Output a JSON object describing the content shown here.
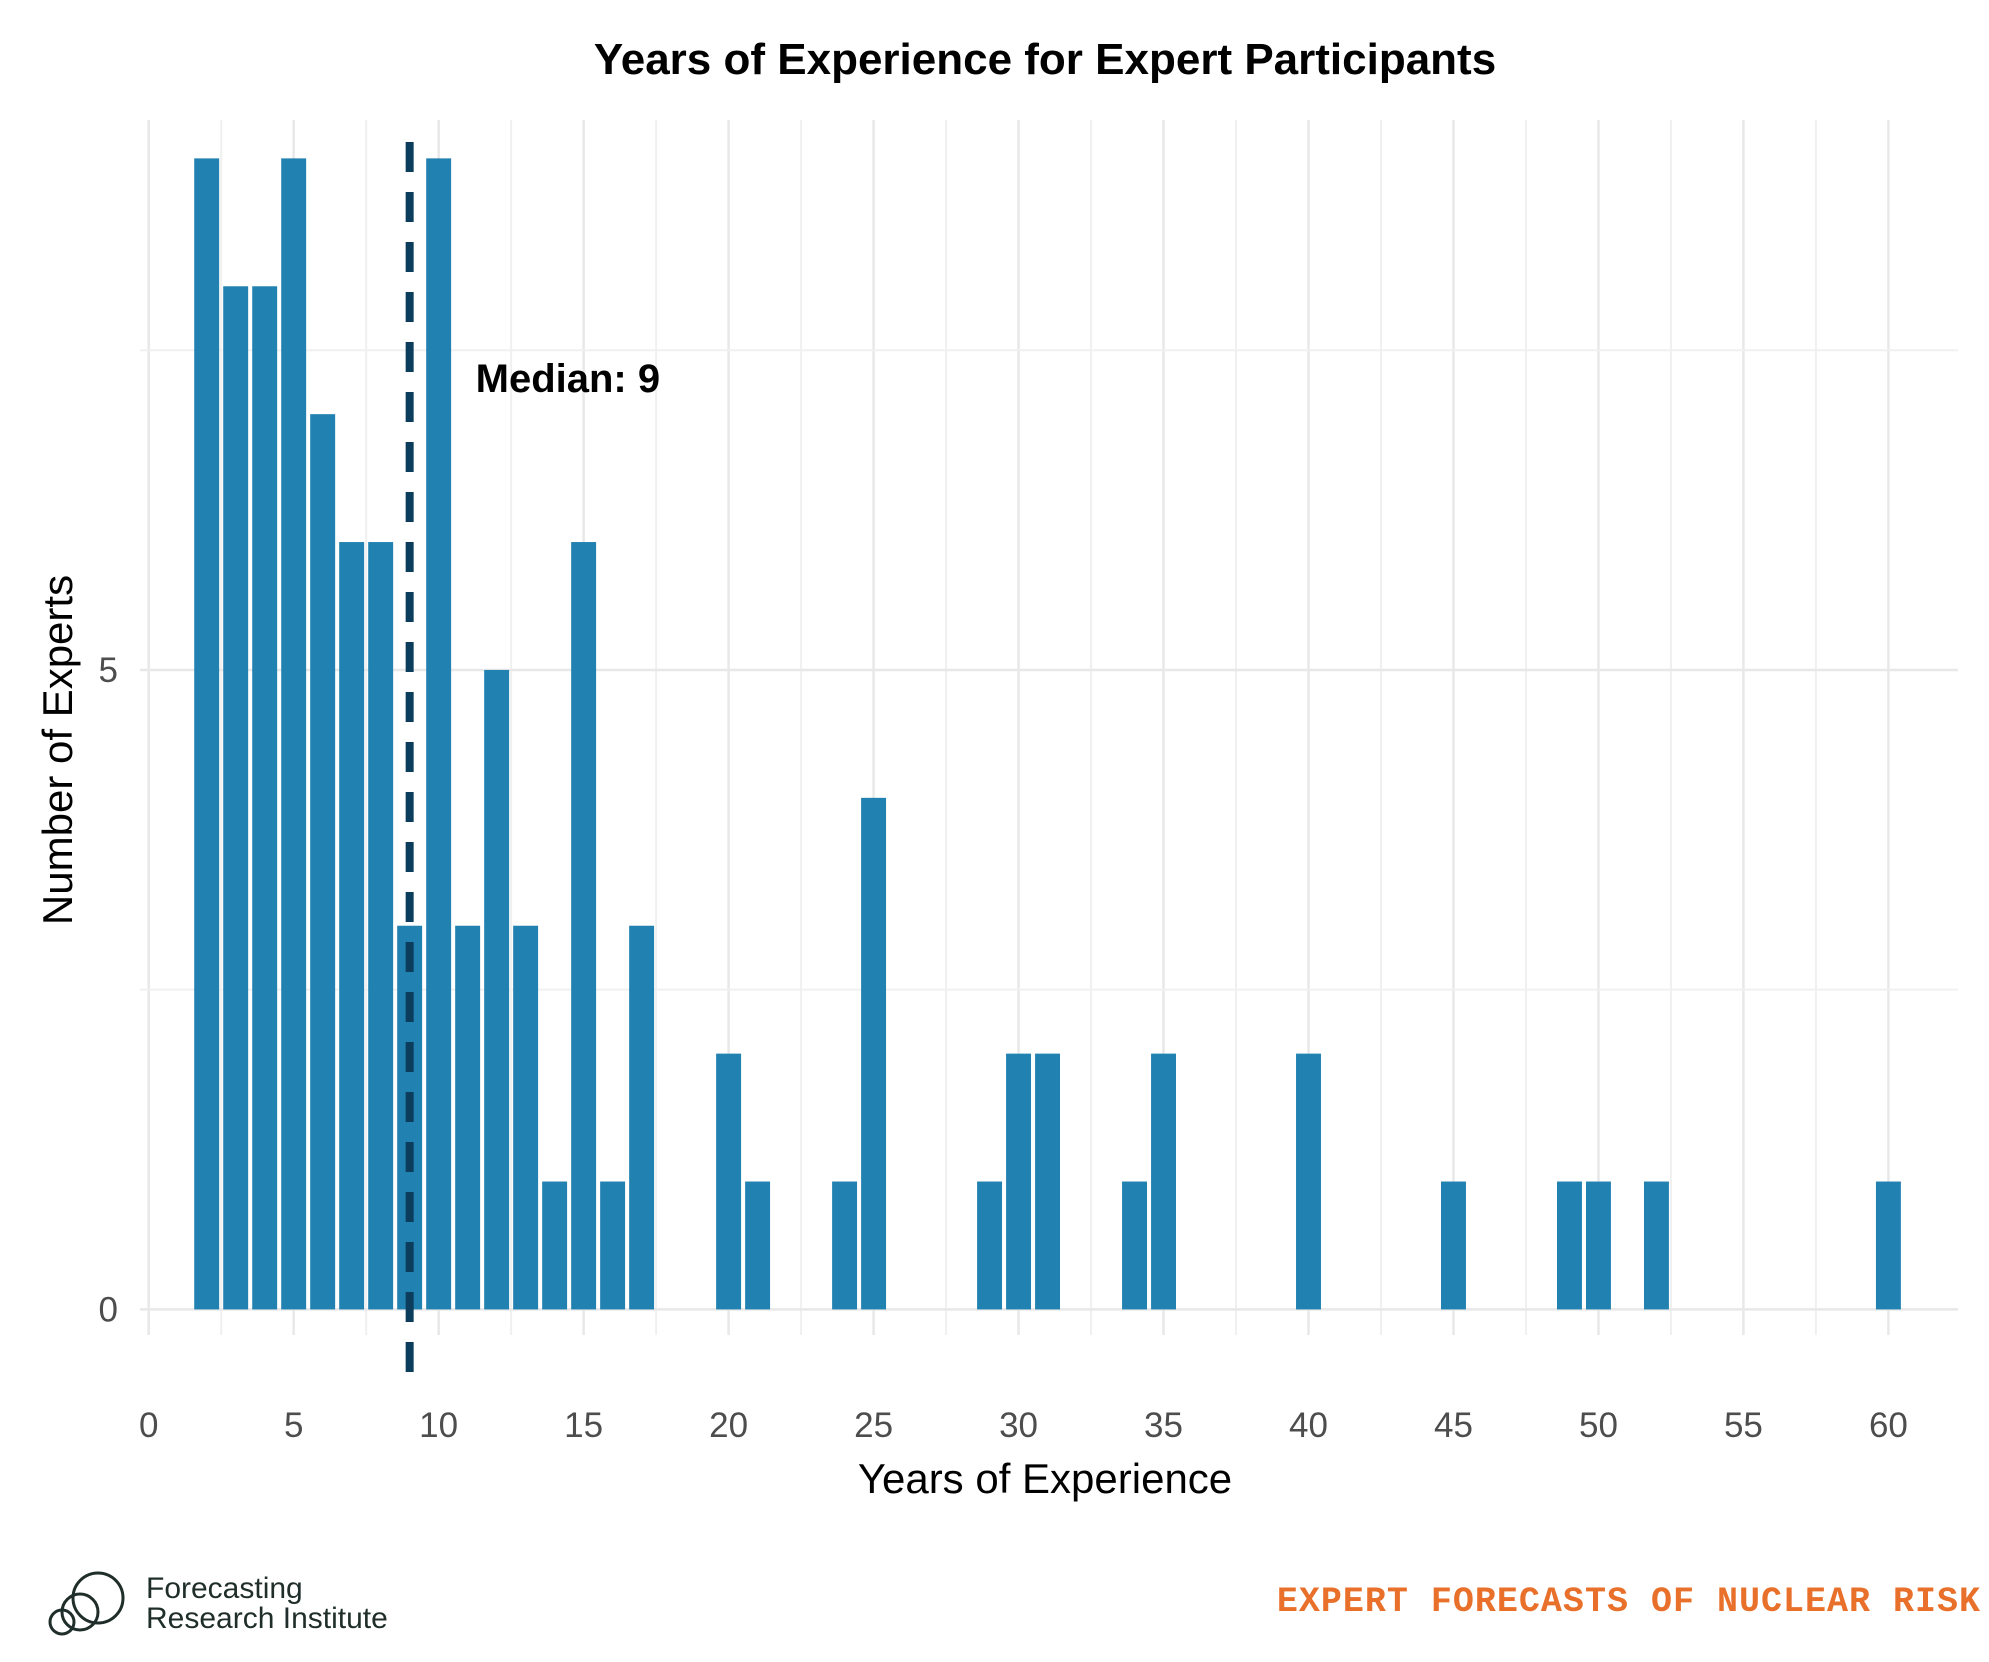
{
  "chart_data": {
    "type": "bar",
    "title": "Years of Experience for Expert Participants",
    "xlabel": "Years of Experience",
    "ylabel": "Number of Experts",
    "xlim": [
      0,
      62
    ],
    "ylim": [
      0,
      9
    ],
    "x_ticks": [
      0,
      5,
      10,
      15,
      20,
      25,
      30,
      35,
      40,
      45,
      50,
      55,
      60
    ],
    "x_tick_labels": [
      "0",
      "5",
      "10",
      "15",
      "20",
      "25",
      "30",
      "35",
      "40",
      "45",
      "50",
      "55",
      "60"
    ],
    "y_ticks": [
      0,
      5
    ],
    "y_tick_labels": [
      "0",
      "5"
    ],
    "grid": true,
    "bar_color": "#2181b0",
    "x": [
      2,
      3,
      4,
      5,
      6,
      7,
      8,
      9,
      10,
      11,
      12,
      13,
      14,
      15,
      16,
      17,
      20,
      21,
      24,
      25,
      29,
      30,
      31,
      34,
      35,
      40,
      45,
      49,
      50,
      52,
      60
    ],
    "values": [
      9,
      8,
      8,
      9,
      7,
      6,
      6,
      3,
      9,
      3,
      5,
      3,
      1,
      6,
      1,
      3,
      2,
      1,
      1,
      4,
      1,
      2,
      2,
      1,
      2,
      2,
      1,
      1,
      1,
      1,
      1
    ],
    "median": {
      "value": 9,
      "label": "Median: 9",
      "color": "#0d3d5c",
      "style": "dashed"
    }
  },
  "footer": {
    "org_line1": "Forecasting",
    "org_line2": "Research Institute",
    "tagline": "EXPERT FORECASTS OF NUCLEAR RISK",
    "tagline_color": "#e8702a"
  }
}
